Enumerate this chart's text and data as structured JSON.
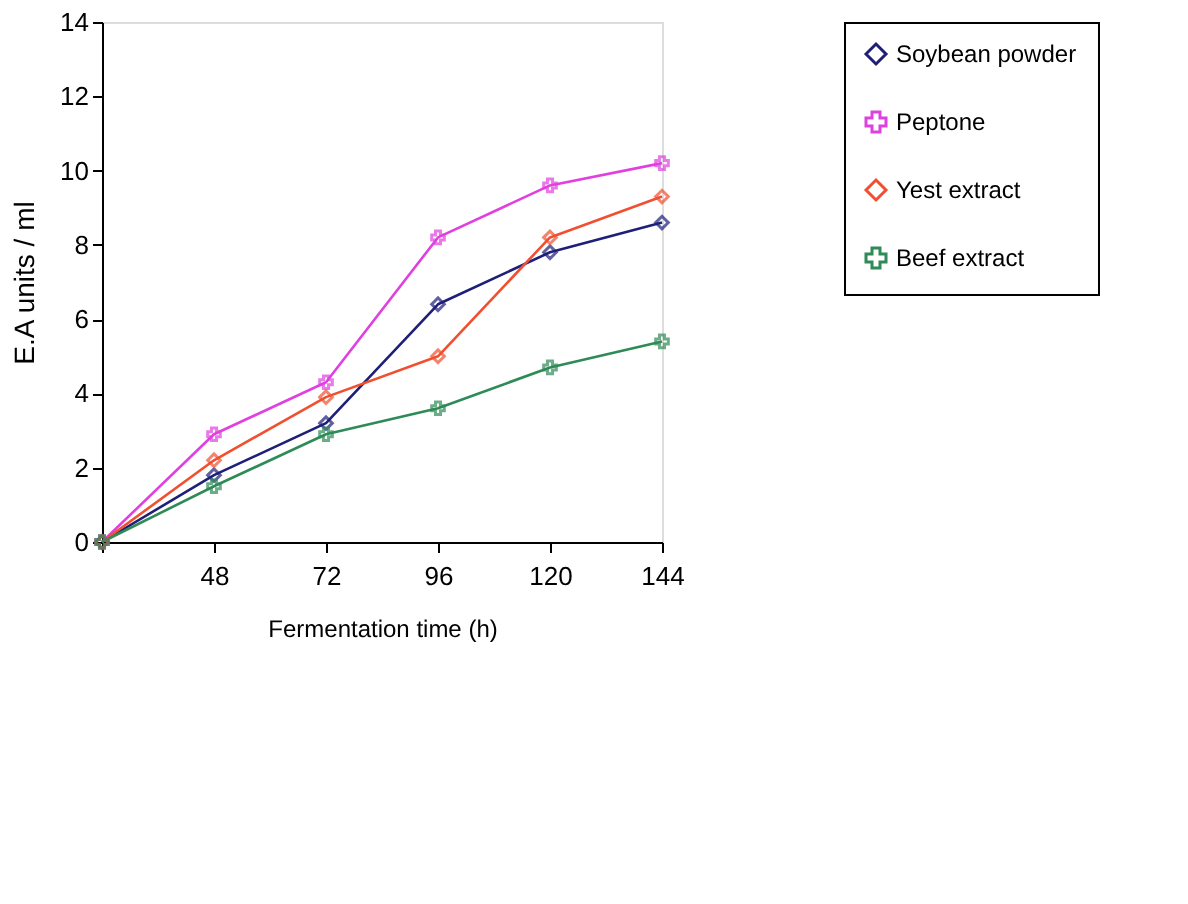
{
  "chart_data": {
    "type": "line",
    "xlabel": "Fermentation time (h)",
    "ylabel": "E.A units / ml",
    "categories": [
      null,
      "48",
      "72",
      "96",
      "120",
      "144"
    ],
    "ylim": [
      0,
      14
    ],
    "yticks": [
      0,
      2,
      4,
      6,
      8,
      10,
      12,
      14
    ],
    "grid": false,
    "legend": "top right",
    "series": [
      {
        "name": "Soybean powder",
        "color": "#1f1f7a",
        "marker": "diamond",
        "values": [
          0,
          1.8,
          3.2,
          6.4,
          7.8,
          8.6
        ]
      },
      {
        "name": "Peptone",
        "color": "#e040e0",
        "marker": "cross",
        "values": [
          0,
          2.9,
          4.3,
          8.2,
          9.6,
          10.2
        ]
      },
      {
        "name": "Yest extract",
        "color": "#f05030",
        "marker": "diamond",
        "values": [
          0,
          2.2,
          3.9,
          5.0,
          8.2,
          9.3
        ]
      },
      {
        "name": "Beef extract",
        "color": "#2e8b57",
        "marker": "cross",
        "values": [
          0,
          1.5,
          2.9,
          3.6,
          4.7,
          5.4
        ]
      }
    ]
  }
}
